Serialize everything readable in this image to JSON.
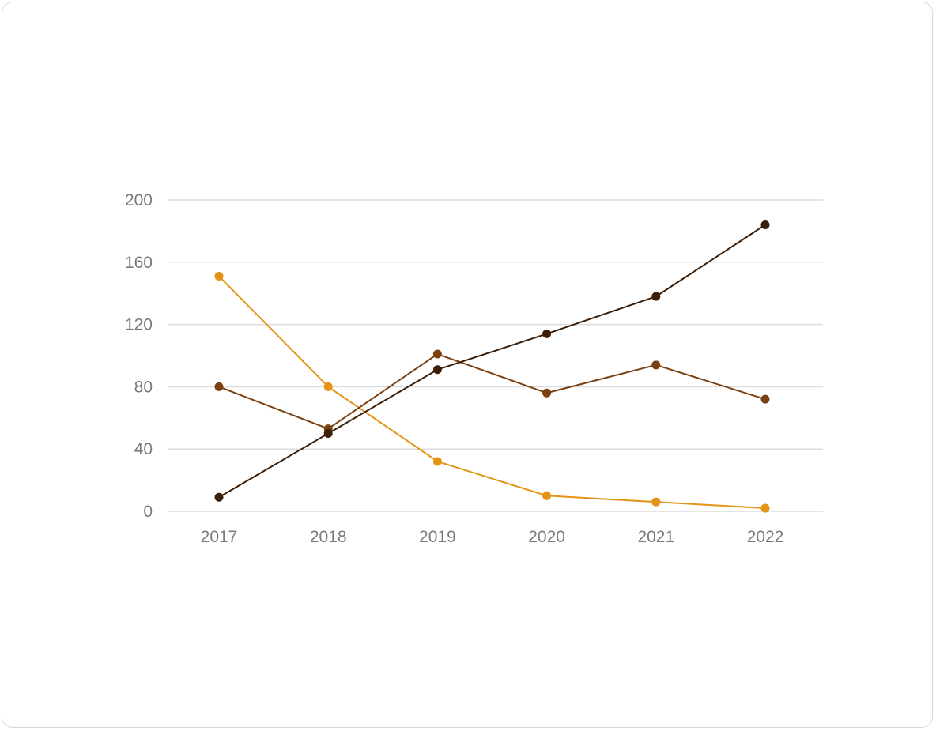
{
  "chart_data": {
    "type": "line",
    "title": "",
    "xlabel": "",
    "ylabel": "",
    "categories": [
      "2017",
      "2018",
      "2019",
      "2020",
      "2021",
      "2022"
    ],
    "ylim": [
      0,
      200
    ],
    "yticks": [
      0,
      40,
      80,
      120,
      160,
      200
    ],
    "grid": true,
    "legend": "none",
    "series": [
      {
        "color": "#e29412",
        "values": [
          151,
          80,
          32,
          10,
          6,
          2
        ]
      },
      {
        "color": "#7a4010",
        "values": [
          80,
          53,
          101,
          76,
          94,
          72
        ]
      },
      {
        "color": "#3b1f08",
        "values": [
          9,
          50,
          91,
          114,
          138,
          184
        ]
      }
    ]
  }
}
